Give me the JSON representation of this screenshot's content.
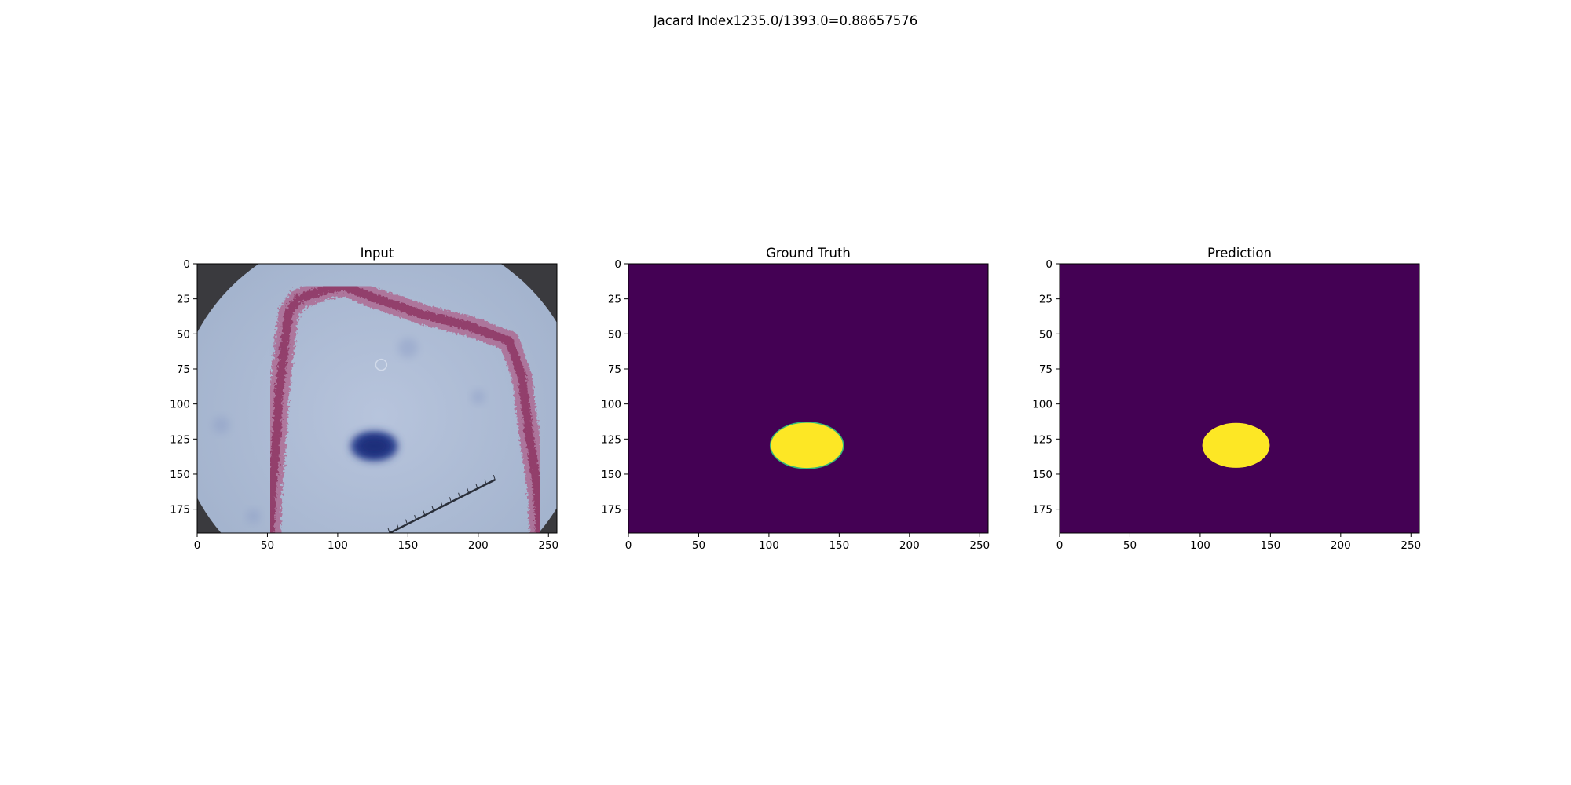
{
  "suptitle": "Jacard Index1235.0/1393.0=0.88657576",
  "colors": {
    "mask_background": "#440154",
    "mask_foreground": "#fde725",
    "mask_edge": "#35b779",
    "photo_background": "#a9b9d3",
    "stain_red": "#b04070",
    "blue_blob": "#2b3f8f",
    "ruler": "#2a2f3a"
  },
  "chart_data": [
    {
      "type": "heatmap",
      "title": "Input",
      "content": "photo",
      "xlim": [
        0,
        256
      ],
      "ylim": [
        192,
        0
      ],
      "xticks": [
        0,
        50,
        100,
        150,
        200,
        250
      ],
      "yticks": [
        0,
        25,
        50,
        75,
        100,
        125,
        150,
        175
      ],
      "xtick_labels": [
        "0",
        "50",
        "100",
        "150",
        "200",
        "250"
      ],
      "ytick_labels": [
        "0",
        "25",
        "50",
        "75",
        "100",
        "125",
        "150",
        "175"
      ]
    },
    {
      "type": "heatmap",
      "title": "Ground Truth",
      "content": "mask",
      "xlim": [
        0,
        256
      ],
      "ylim": [
        192,
        0
      ],
      "xticks": [
        0,
        50,
        100,
        150,
        200,
        250
      ],
      "yticks": [
        0,
        25,
        50,
        75,
        100,
        125,
        150,
        175
      ],
      "xtick_labels": [
        "0",
        "50",
        "100",
        "150",
        "200",
        "250"
      ],
      "ytick_labels": [
        "0",
        "25",
        "50",
        "75",
        "100",
        "125",
        "150",
        "175"
      ],
      "blob": {
        "cx": 127,
        "cy": 129.5,
        "rx": 26,
        "ry": 16.5
      },
      "blob_edge": true
    },
    {
      "type": "heatmap",
      "title": "Prediction",
      "content": "mask",
      "xlim": [
        0,
        256
      ],
      "ylim": [
        192,
        0
      ],
      "xticks": [
        0,
        50,
        100,
        150,
        200,
        250
      ],
      "yticks": [
        0,
        25,
        50,
        75,
        100,
        125,
        150,
        175
      ],
      "xtick_labels": [
        "0",
        "50",
        "100",
        "150",
        "200",
        "250"
      ],
      "ytick_labels": [
        "0",
        "25",
        "50",
        "75",
        "100",
        "125",
        "150",
        "175"
      ],
      "blob": {
        "cx": 125.5,
        "cy": 129.5,
        "rx": 24,
        "ry": 16
      },
      "blob_edge": false
    }
  ]
}
